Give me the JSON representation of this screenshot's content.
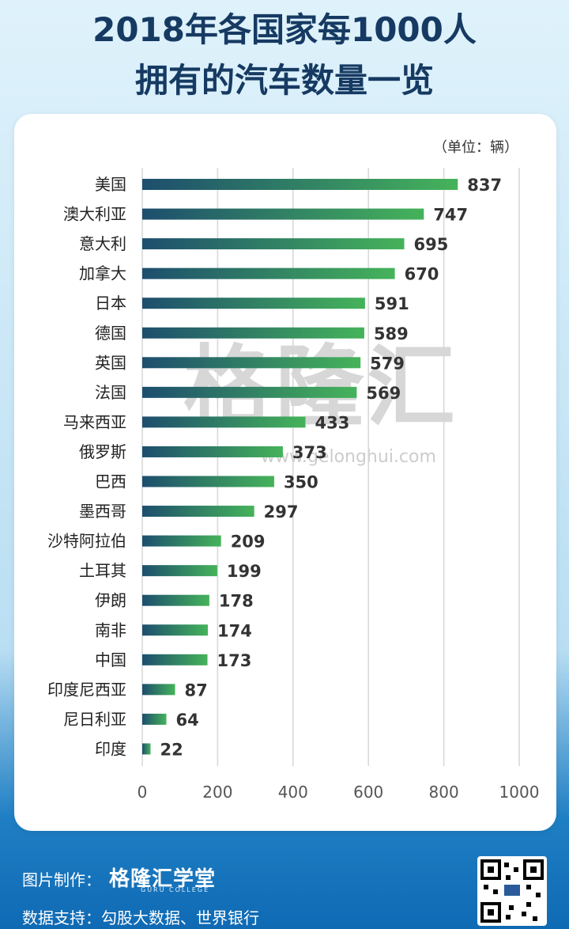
{
  "title_line1": "2018年各国家每1000人",
  "title_line2": "拥有的汽车数量一览",
  "unit_label": "（单位：辆）",
  "watermark": "格隆汇",
  "watermark_url": "www.gelonghui.com",
  "footer": {
    "made_by_label": "图片制作：",
    "brand": "格隆汇学堂",
    "brand_sub": "GURU COLLEGE",
    "data_label": "数据支持：勾股大数据、世界银行"
  },
  "colors": {
    "bar_start": "#1d4e6e",
    "bar_end": "#45b35a",
    "title": "#163a62"
  },
  "chart_data": {
    "type": "bar",
    "orientation": "horizontal",
    "title": "2018年各国家每1000人拥有的汽车数量一览",
    "xlim": [
      0,
      1000
    ],
    "xticks": [
      0,
      200,
      400,
      600,
      800,
      1000
    ],
    "grid": true,
    "categories": [
      "美国",
      "澳大利亚",
      "意大利",
      "加拿大",
      "日本",
      "德国",
      "英国",
      "法国",
      "马来西亚",
      "俄罗斯",
      "巴西",
      "墨西哥",
      "沙特阿拉伯",
      "土耳其",
      "伊朗",
      "南非",
      "中国",
      "印度尼西亚",
      "尼日利亚",
      "印度"
    ],
    "values": [
      837,
      747,
      695,
      670,
      591,
      589,
      579,
      569,
      433,
      373,
      350,
      297,
      209,
      199,
      178,
      174,
      173,
      87,
      64,
      22
    ]
  }
}
